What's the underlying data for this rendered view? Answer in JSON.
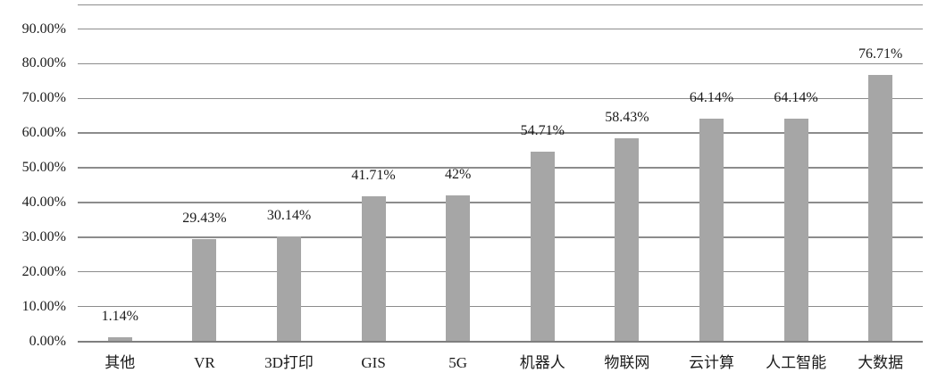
{
  "chart_data": {
    "type": "bar",
    "categories": [
      "其他",
      "VR",
      "3D打印",
      "GIS",
      "5G",
      "机器人",
      "物联网",
      "云计算",
      "人工智能",
      "大数据"
    ],
    "values": [
      1.14,
      29.43,
      30.14,
      41.71,
      42,
      54.71,
      58.43,
      64.14,
      64.14,
      76.71
    ],
    "data_labels": [
      "1.14%",
      "29.43%",
      "30.14%",
      "41.71%",
      "42%",
      "54.71%",
      "58.43%",
      "64.14%",
      "64.14%",
      "76.71%"
    ],
    "title": "",
    "xlabel": "",
    "ylabel": "",
    "ylim": [
      0,
      90
    ],
    "ytick_step": 10,
    "ytick_values": [
      0,
      10,
      20,
      30,
      40,
      50,
      60,
      70,
      80,
      90
    ],
    "ytick_labels": [
      "0.00%",
      "10.00%",
      "20.00%",
      "30.00%",
      "40.00%",
      "50.00%",
      "60.00%",
      "70.00%",
      "80.00%",
      "90.00%"
    ],
    "grid": true,
    "legend": false,
    "data_labels_position": "outside-end",
    "colors": {
      "bar": "#a6a6a6",
      "gridline": "#8c8c8c",
      "axis_line": "#7f7f7f",
      "text": "#1a1a1a",
      "background": "#ffffff"
    }
  }
}
